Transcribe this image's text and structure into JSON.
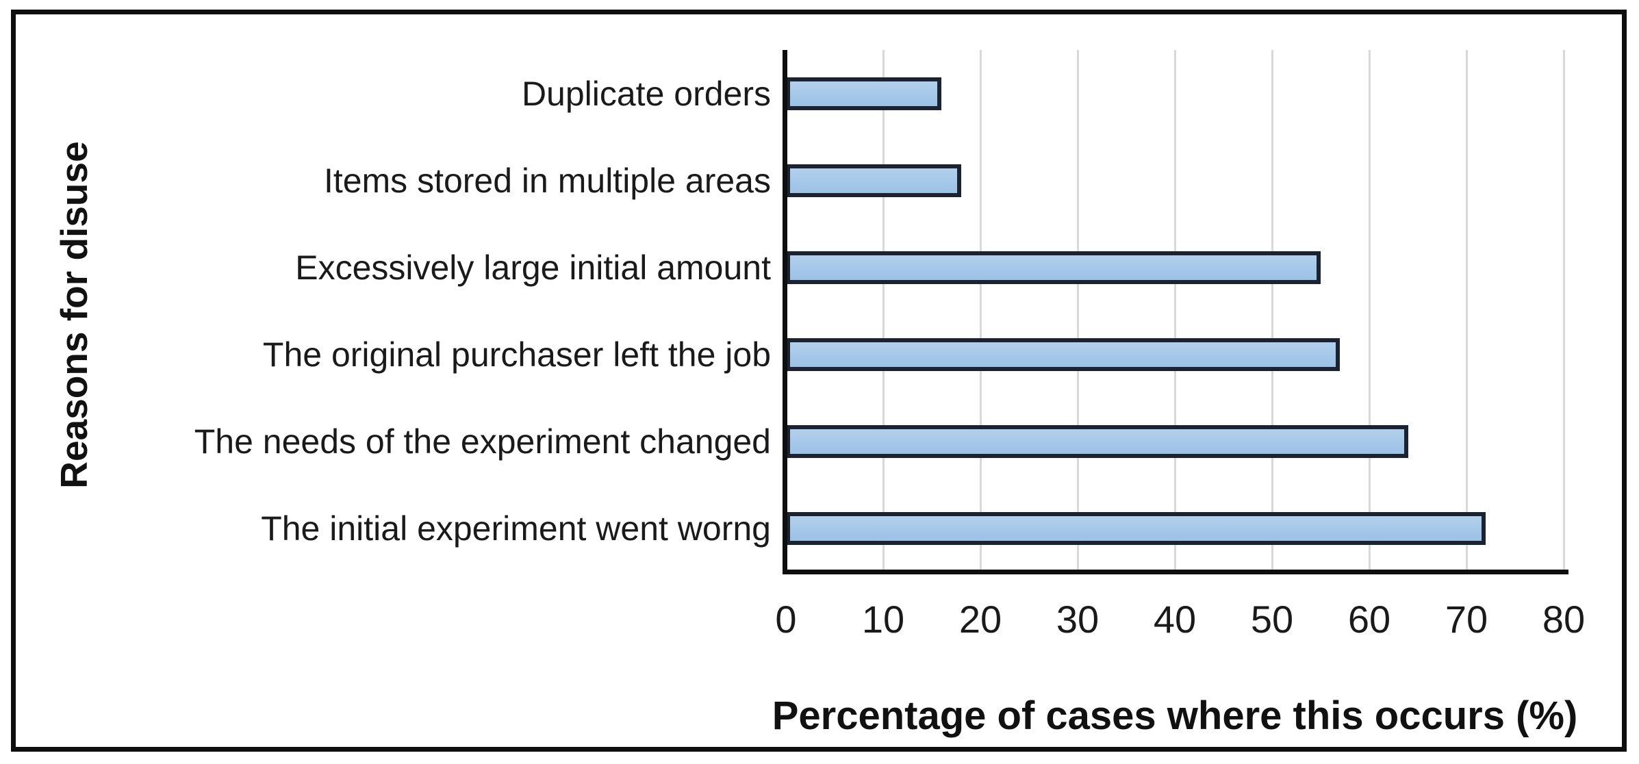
{
  "chart_data": {
    "type": "bar",
    "orientation": "horizontal",
    "title": "",
    "xlabel": "Percentage of cases where this occurs (%)",
    "ylabel": "Reasons for disuse",
    "categories": [
      "Duplicate orders",
      "Items stored in multiple areas",
      "Excessively large initial amount",
      "The original purchaser left the job",
      "The needs of the experiment changed",
      "The initial experiment went worng"
    ],
    "values": [
      16,
      18,
      55,
      57,
      64,
      72
    ],
    "xlim": [
      0,
      80
    ],
    "xticks": [
      0,
      10,
      20,
      30,
      40,
      50,
      60,
      70,
      80
    ],
    "grid": "vertical-gridlines-on",
    "legend": "none",
    "colors": {
      "bar_fill": "#a6c9e9",
      "bar_border": "#1b2330",
      "gridline": "#d9d9d9",
      "axis": "#0e0e0e",
      "text": "#1a1a1a",
      "frame_border": "#0e0e0e",
      "background": "#ffffff"
    }
  }
}
